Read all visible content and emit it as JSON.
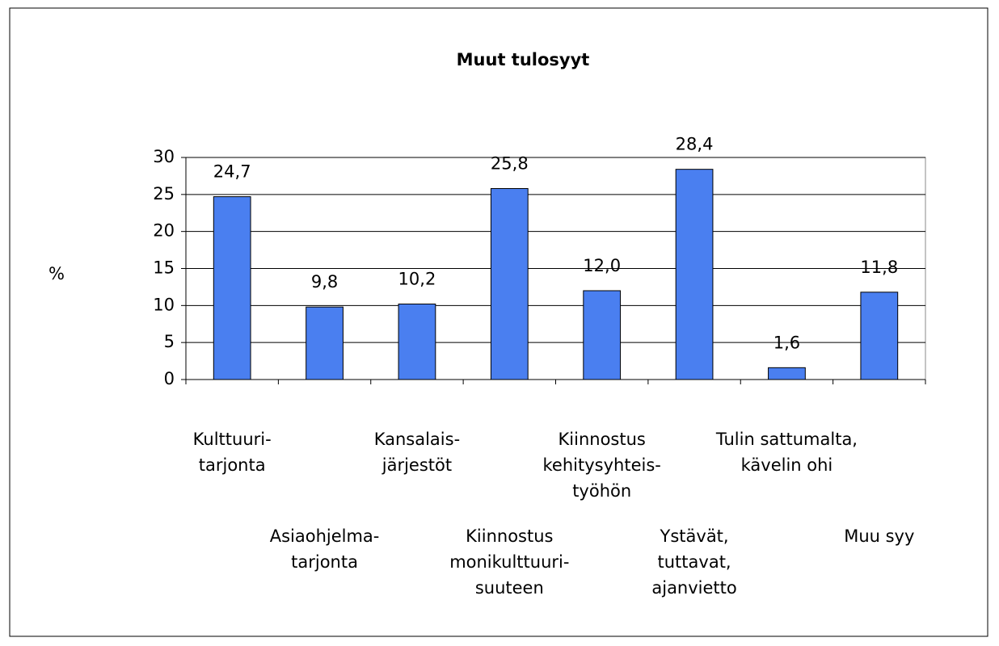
{
  "chart_data": {
    "type": "bar",
    "title": "Muut tulosyyt",
    "y_label": "%",
    "categories": [
      [
        "Kulttuuri-",
        "tarjonta"
      ],
      [
        "Asiaohjelma-",
        "tarjonta"
      ],
      [
        "Kansalais-",
        "järjestöt"
      ],
      [
        "Kiinnostus",
        "monikulttuuri-",
        "suuteen"
      ],
      [
        "Kiinnostus",
        "kehitysyhteis-",
        "työhön"
      ],
      [
        "Ystävät,",
        "tuttavat,",
        "ajanvietto"
      ],
      [
        "Tulin sattumalta,",
        "kävelin ohi"
      ],
      [
        "Muu syy"
      ]
    ],
    "values": [
      24.7,
      9.8,
      10.2,
      25.8,
      12.0,
      28.4,
      1.6,
      11.8
    ],
    "value_labels": [
      "24,7",
      "9,8",
      "10,2",
      "25,8",
      "12,0",
      "28,4",
      "1,6",
      "11,8"
    ],
    "color": "#4a7ff0",
    "ylim": [
      0,
      30
    ],
    "yticks": [
      0,
      5,
      10,
      15,
      20,
      25,
      30
    ],
    "grid": true
  }
}
